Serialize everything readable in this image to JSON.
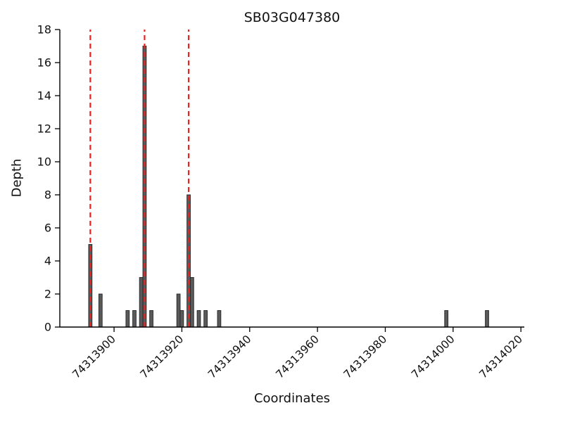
{
  "chart_data": {
    "type": "bar",
    "title": "SB03G047380",
    "xlabel": "Coordinates",
    "ylabel": "Depth",
    "xlim": [
      74313884,
      74314021
    ],
    "ylim": [
      0,
      18
    ],
    "x_ticks": [
      74313900,
      74313920,
      74313940,
      74313960,
      74313980,
      74314000,
      74314020
    ],
    "y_ticks": [
      0,
      2,
      4,
      6,
      8,
      10,
      12,
      14,
      16,
      18
    ],
    "grid": false,
    "legend": "none",
    "bar_color": "#5a5a5a",
    "bar_edge_color": "#262626",
    "dashed_line_color": "#ee2020",
    "axis_color": "#000000",
    "bars": [
      {
        "x": 74313893,
        "depth": 5
      },
      {
        "x": 74313896,
        "depth": 2
      },
      {
        "x": 74313904,
        "depth": 1
      },
      {
        "x": 74313906,
        "depth": 1
      },
      {
        "x": 74313908,
        "depth": 3
      },
      {
        "x": 74313909,
        "depth": 17
      },
      {
        "x": 74313911,
        "depth": 1
      },
      {
        "x": 74313919,
        "depth": 2
      },
      {
        "x": 74313920,
        "depth": 1
      },
      {
        "x": 74313922,
        "depth": 8
      },
      {
        "x": 74313923,
        "depth": 3
      },
      {
        "x": 74313925,
        "depth": 1
      },
      {
        "x": 74313927,
        "depth": 1
      },
      {
        "x": 74313931,
        "depth": 1
      },
      {
        "x": 74313998,
        "depth": 1
      },
      {
        "x": 74314010,
        "depth": 1
      }
    ],
    "dashed_lines": [
      74313893,
      74313909,
      74313922
    ]
  }
}
